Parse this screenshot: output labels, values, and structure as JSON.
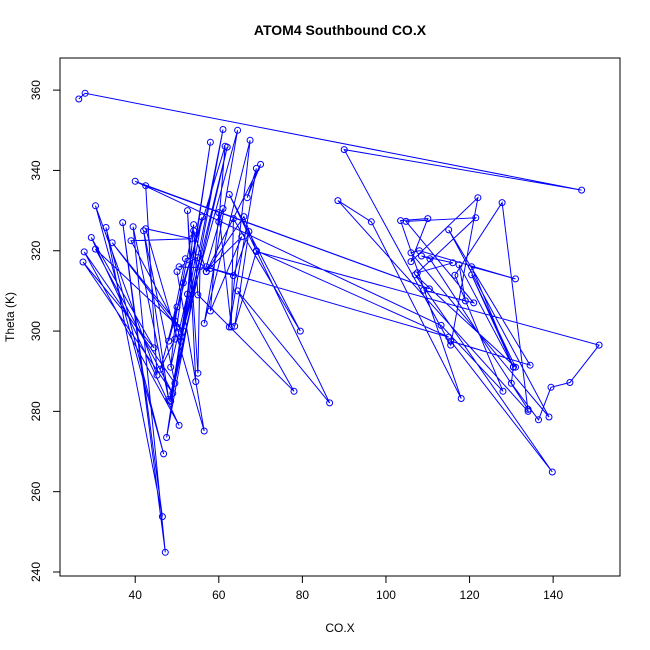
{
  "chart_data": {
    "type": "line",
    "title": "ATOM4 Southbound CO.X",
    "xlabel": "CO.X",
    "ylabel": "Theta (K)",
    "xlim": [
      22,
      156
    ],
    "ylim": [
      239,
      368
    ],
    "xticks": [
      40,
      60,
      80,
      100,
      120,
      140
    ],
    "yticks": [
      240,
      260,
      280,
      300,
      320,
      340,
      360
    ],
    "grid": false,
    "legend": "none",
    "series_color": "#0000ff",
    "marker": "open-circle",
    "points": [
      [
        26.5,
        357.8
      ],
      [
        28.0,
        359.2
      ],
      [
        146.8,
        335.1
      ],
      [
        90.0,
        345.2
      ],
      [
        115.5,
        296.5
      ],
      [
        122.0,
        333.2
      ],
      [
        106.0,
        317.3
      ],
      [
        110.0,
        328.0
      ],
      [
        103.5,
        327.5
      ],
      [
        118.0,
        283.2
      ],
      [
        96.5,
        327.2
      ],
      [
        88.5,
        332.5
      ],
      [
        134.0,
        280.0
      ],
      [
        127.8,
        332.0
      ],
      [
        116.5,
        313.9
      ],
      [
        128.0,
        285.0
      ],
      [
        113.2,
        301.4
      ],
      [
        40.0,
        337.3
      ],
      [
        110.4,
        310.5
      ],
      [
        42.5,
        336.2
      ],
      [
        45.2,
        289.0
      ],
      [
        30.5,
        331.2
      ],
      [
        46.8,
        269.4
      ],
      [
        33.0,
        325.8
      ],
      [
        46.5,
        253.8
      ],
      [
        37.0,
        327.0
      ],
      [
        47.2,
        244.9
      ],
      [
        39.5,
        326.0
      ],
      [
        48.0,
        283.0
      ],
      [
        42.0,
        325.0
      ],
      [
        49.5,
        287.0
      ],
      [
        27.8,
        319.7
      ],
      [
        50.5,
        276.5
      ],
      [
        29.5,
        323.3
      ],
      [
        44.5,
        295.8
      ],
      [
        27.5,
        317.2
      ],
      [
        49.0,
        284.5
      ],
      [
        30.5,
        320.4
      ],
      [
        51.5,
        300.0
      ],
      [
        34.5,
        322.0
      ],
      [
        50.0,
        301.0
      ],
      [
        39.0,
        322.5
      ],
      [
        53.5,
        323.0
      ],
      [
        42.5,
        325.5
      ],
      [
        56.5,
        275.1
      ],
      [
        50.0,
        314.8
      ],
      [
        54.5,
        287.4
      ],
      [
        52.5,
        330.0
      ],
      [
        55.0,
        289.5
      ],
      [
        55.5,
        316.0
      ],
      [
        48.5,
        282.5
      ],
      [
        58.0,
        347.0
      ],
      [
        47.5,
        273.5
      ],
      [
        61.0,
        350.2
      ],
      [
        48.2,
        282.6
      ],
      [
        62.0,
        345.8
      ],
      [
        51.0,
        298.5
      ],
      [
        64.5,
        350.0
      ],
      [
        56.5,
        301.9
      ],
      [
        67.5,
        347.5
      ],
      [
        62.5,
        301.0
      ],
      [
        69.0,
        340.5
      ],
      [
        66.8,
        333.2
      ],
      [
        70.0,
        341.5
      ],
      [
        57.0,
        314.8
      ],
      [
        65.5,
        323.5
      ],
      [
        58.0,
        305.0
      ],
      [
        60.0,
        329.5
      ],
      [
        63.0,
        301.0
      ],
      [
        63.5,
        328.0
      ],
      [
        79.5,
        300.0
      ],
      [
        62.5,
        334.0
      ],
      [
        86.5,
        282.1
      ],
      [
        64.5,
        310.0
      ],
      [
        78.0,
        285.0
      ],
      [
        55.0,
        309.0
      ],
      [
        54.0,
        325.0
      ],
      [
        57.0,
        314.8
      ],
      [
        66.0,
        328.5
      ],
      [
        69.0,
        320.0
      ],
      [
        115.0,
        298.5
      ],
      [
        57.0,
        316.0
      ],
      [
        61.0,
        330.5
      ],
      [
        60.0,
        327.2
      ],
      [
        61.5,
        346.0
      ],
      [
        51.5,
        312.0
      ],
      [
        49.5,
        298.0
      ],
      [
        46.0,
        290.5
      ],
      [
        50.0,
        306.0
      ],
      [
        48.5,
        291.0
      ],
      [
        52.5,
        309.2
      ],
      [
        54.0,
        326.5
      ],
      [
        49.5,
        302.5
      ],
      [
        51.0,
        297.5
      ],
      [
        56.0,
        328.4
      ],
      [
        48.0,
        297.5
      ],
      [
        52.0,
        318.0
      ],
      [
        55.0,
        318.3
      ],
      [
        50.5,
        316.0
      ],
      [
        58.0,
        315.6
      ],
      [
        63.5,
        313.8
      ],
      [
        67.2,
        324.8
      ],
      [
        63.8,
        301.2
      ],
      [
        69.0,
        319.8
      ],
      [
        151.0,
        296.5
      ],
      [
        144.0,
        287.2
      ],
      [
        139.5,
        286.0
      ],
      [
        136.5,
        277.9
      ],
      [
        130.0,
        287.0
      ],
      [
        130.5,
        291.1
      ],
      [
        120.5,
        314.0
      ],
      [
        131.0,
        291.0
      ],
      [
        107.0,
        314.0
      ],
      [
        139.8,
        264.9
      ],
      [
        115.5,
        297.5
      ],
      [
        134.5,
        291.5
      ],
      [
        115.0,
        325.2
      ],
      [
        139.0,
        278.6
      ],
      [
        106.0,
        319.5
      ],
      [
        108.0,
        320.0
      ],
      [
        131.0,
        313.0
      ],
      [
        120.5,
        316.0
      ],
      [
        130.5,
        291.0
      ],
      [
        117.5,
        316.5
      ],
      [
        119.0,
        307.5
      ],
      [
        109.0,
        310.2
      ],
      [
        121.0,
        307.0
      ],
      [
        104.8,
        327.3
      ],
      [
        121.5,
        328.2
      ],
      [
        107.5,
        314.5
      ],
      [
        116.0,
        317.0
      ],
      [
        108.5,
        318.7
      ],
      [
        110.5,
        318.0
      ],
      [
        134.0,
        280.5
      ]
    ]
  }
}
